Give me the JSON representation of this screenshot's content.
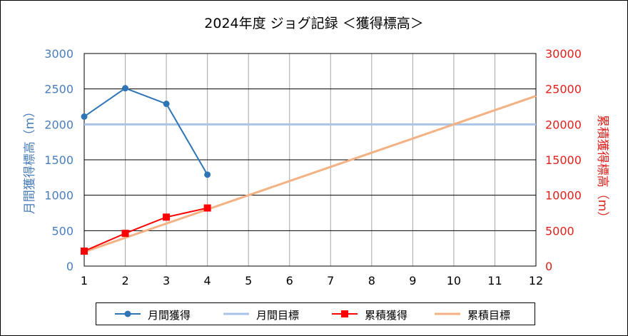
{
  "chart_data": {
    "type": "line",
    "title": "2024年度  ジョグ記録 ＜獲得標高＞",
    "x": [
      1,
      2,
      3,
      4,
      5,
      6,
      7,
      8,
      9,
      10,
      11,
      12
    ],
    "x_tick_labels": [
      "1",
      "2",
      "3",
      "4",
      "5",
      "6",
      "7",
      "8",
      "9",
      "10",
      "11",
      "12"
    ],
    "xlim": [
      1,
      12
    ],
    "y_left": {
      "label": "月間獲得標高（m）",
      "ylim": [
        0,
        3000
      ],
      "ticks": [
        0,
        500,
        1000,
        1500,
        2000,
        2500,
        3000
      ],
      "tick_labels": [
        "0",
        "500",
        "1000",
        "1500",
        "2000",
        "2500",
        "3000"
      ],
      "color": "#4a7ebb"
    },
    "y_right": {
      "label": "累積獲得標高（m）",
      "ylim": [
        0,
        30000
      ],
      "ticks": [
        0,
        5000,
        10000,
        15000,
        20000,
        25000,
        30000
      ],
      "tick_labels": [
        "0",
        "5000",
        "10000",
        "15000",
        "20000",
        "25000",
        "30000"
      ],
      "color": "#e0201b"
    },
    "grid": true,
    "legend_position": "bottom",
    "series": [
      {
        "name": "月間獲得",
        "axis": "left",
        "x": [
          1,
          2,
          3,
          4
        ],
        "values": [
          2110,
          2510,
          2290,
          1290
        ],
        "color": "#2e75b6",
        "marker": "circle"
      },
      {
        "name": "月間目標",
        "axis": "left",
        "x": [
          1,
          12
        ],
        "values": [
          2000,
          2000
        ],
        "color": "#a9c4e6",
        "marker": "none"
      },
      {
        "name": "累積獲得",
        "axis": "right",
        "x": [
          1,
          2,
          3,
          4
        ],
        "values": [
          2110,
          4620,
          6910,
          8200
        ],
        "color": "#ff0000",
        "marker": "square"
      },
      {
        "name": "累積目標",
        "axis": "right",
        "x": [
          1,
          12
        ],
        "values": [
          2000,
          24000
        ],
        "color": "#f4b183",
        "marker": "none"
      }
    ]
  }
}
